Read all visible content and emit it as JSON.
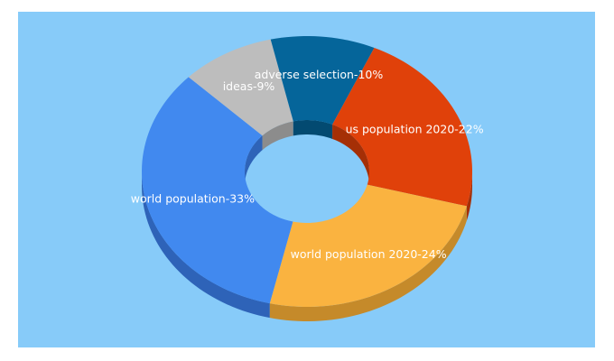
{
  "colors": {
    "background": "#87CBF9",
    "page": "#ffffff",
    "label_text": "#ffffff"
  },
  "chart_data": {
    "type": "pie",
    "variant": "3d-donut",
    "title": "",
    "legend": "none",
    "slices": [
      {
        "label": "world population-33%",
        "value": 33,
        "color": "#4189EF",
        "side_color": "#2E63B8"
      },
      {
        "label": "ideas-9%",
        "value": 9,
        "color": "#BDBDBD",
        "side_color": "#8C8C8C"
      },
      {
        "label": "adverse selection-10%",
        "value": 10,
        "color": "#05659A",
        "side_color": "#034A71"
      },
      {
        "label": "us population 2020-22%",
        "value": 22,
        "color": "#E0410A",
        "side_color": "#A52F06"
      },
      {
        "label": "world population 2020-24%",
        "value": 24,
        "color": "#FAB340",
        "side_color": "#C58A2A"
      }
    ]
  }
}
